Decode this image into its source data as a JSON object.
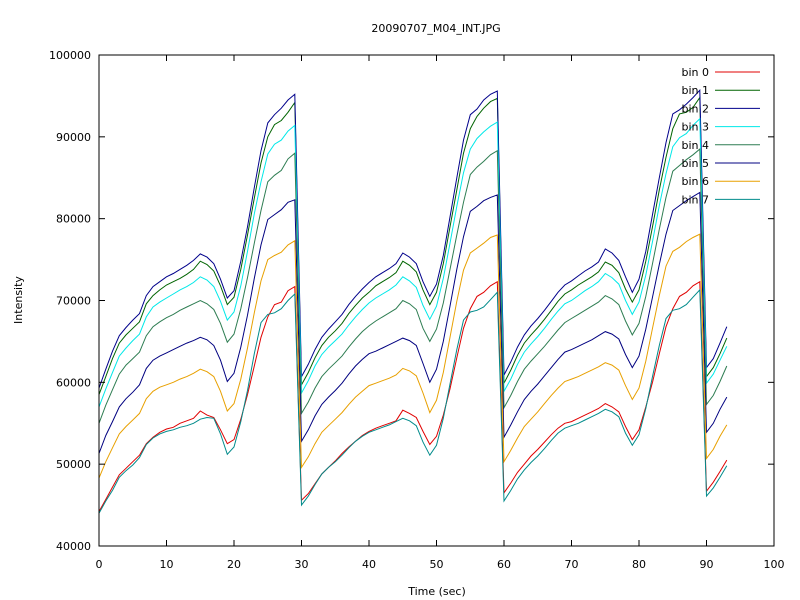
{
  "chart_data": {
    "type": "line",
    "title": "20090707_M04_INT.JPG",
    "xlabel": "Time (sec)",
    "ylabel": "Intensity",
    "xlim": [
      0,
      100
    ],
    "ylim": [
      40000,
      100000
    ],
    "x_ticks": [
      "0",
      "10",
      "20",
      "30",
      "40",
      "50",
      "60",
      "70",
      "80",
      "90",
      "100"
    ],
    "y_ticks": [
      "40000",
      "50000",
      "60000",
      "70000",
      "80000",
      "90000",
      "100000"
    ],
    "grid": false,
    "legend_position": "top-right",
    "x": [
      0,
      1,
      2,
      3,
      4,
      5,
      6,
      7,
      8,
      9,
      10,
      11,
      12,
      13,
      14,
      15,
      16,
      17,
      18,
      19,
      20,
      21,
      22,
      23,
      24,
      25,
      26,
      27,
      28,
      29,
      30,
      31,
      32,
      33,
      34,
      35,
      36,
      37,
      38,
      39,
      40,
      41,
      42,
      43,
      44,
      45,
      46,
      47,
      48,
      49,
      50,
      51,
      52,
      53,
      54,
      55,
      56,
      57,
      58,
      59,
      60,
      61,
      62,
      63,
      64,
      65,
      66,
      67,
      68,
      69,
      70,
      71,
      72,
      73,
      74,
      75,
      76,
      77,
      78,
      79,
      80,
      81,
      82,
      83,
      84,
      85,
      86,
      87,
      88,
      89,
      90,
      91,
      92,
      93
    ],
    "series": [
      {
        "name": "bin 0",
        "color": "#e00000",
        "values": [
          44200,
          45700,
          47200,
          48700,
          49500,
          50300,
          51100,
          52500,
          53300,
          53900,
          54300,
          54500,
          55000,
          55300,
          55600,
          56500,
          56000,
          55700,
          54200,
          52500,
          53000,
          55500,
          58500,
          62000,
          65500,
          68000,
          69500,
          69800,
          71200,
          71700,
          45600,
          46400,
          47600,
          48800,
          49600,
          50400,
          51300,
          52100,
          52800,
          53500,
          54000,
          54400,
          54700,
          55000,
          55300,
          56600,
          56200,
          55700,
          54000,
          52400,
          53400,
          56000,
          59200,
          63000,
          66600,
          69000,
          70500,
          71000,
          71800,
          72300,
          46500,
          47700,
          49000,
          50000,
          51000,
          51800,
          52700,
          53600,
          54400,
          55000,
          55200,
          55600,
          56000,
          56400,
          56800,
          57400,
          57000,
          56400,
          54600,
          53000,
          54200,
          57000,
          60000,
          63500,
          66800,
          69000,
          70500,
          71000,
          71800,
          72300,
          46700,
          47800,
          49100,
          50500
        ]
      },
      {
        "name": "bin 1",
        "color": "#006400",
        "values": [
          58500,
          60700,
          62900,
          64800,
          65800,
          66600,
          67400,
          69600,
          70600,
          71300,
          71900,
          72300,
          72700,
          73200,
          73800,
          74800,
          74400,
          73600,
          71800,
          69500,
          70400,
          73800,
          78000,
          82500,
          86800,
          90000,
          91500,
          92000,
          93000,
          94200,
          59700,
          61200,
          63000,
          64500,
          65500,
          66300,
          67200,
          68400,
          69400,
          70300,
          71000,
          71800,
          72300,
          72800,
          73400,
          74800,
          74300,
          73500,
          71300,
          69500,
          71000,
          74500,
          79000,
          83500,
          88000,
          91000,
          92500,
          93500,
          94300,
          94700,
          59900,
          61500,
          63300,
          64800,
          65800,
          66700,
          67700,
          68800,
          69900,
          70800,
          71300,
          71900,
          72400,
          72900,
          73500,
          74700,
          74300,
          73400,
          71400,
          69800,
          71300,
          74800,
          79000,
          83500,
          87500,
          91000,
          92800,
          93000,
          93600,
          94800,
          60700,
          61800,
          63500,
          65400
        ]
      },
      {
        "name": "bin 2",
        "color": "#00008b",
        "values": [
          59300,
          61600,
          63800,
          65700,
          66700,
          67600,
          68400,
          70600,
          71700,
          72300,
          72900,
          73300,
          73800,
          74300,
          74900,
          75700,
          75300,
          74500,
          72600,
          70300,
          71200,
          74800,
          79000,
          83800,
          88300,
          91700,
          92700,
          93500,
          94500,
          95200,
          60700,
          62200,
          64000,
          65500,
          66500,
          67400,
          68300,
          69500,
          70500,
          71400,
          72200,
          72900,
          73400,
          73900,
          74500,
          75800,
          75300,
          74500,
          72300,
          70500,
          72000,
          75500,
          80200,
          85000,
          89600,
          92700,
          93400,
          94500,
          95200,
          95600,
          60900,
          62500,
          64300,
          65800,
          66900,
          67800,
          68800,
          69900,
          71000,
          71900,
          72400,
          73000,
          73600,
          74100,
          74700,
          76300,
          75800,
          74900,
          72900,
          71000,
          72600,
          76000,
          80500,
          85000,
          89300,
          92800,
          93300,
          94000,
          94800,
          95700,
          61800,
          62900,
          64800,
          66800
        ]
      },
      {
        "name": "bin 3",
        "color": "#00e8e8",
        "values": [
          57000,
          59200,
          61200,
          63200,
          64200,
          65100,
          65900,
          68000,
          69200,
          69800,
          70300,
          70800,
          71300,
          71700,
          72200,
          72900,
          72500,
          71700,
          69900,
          67600,
          68600,
          71800,
          76000,
          80600,
          84500,
          87900,
          89100,
          89600,
          90700,
          91400,
          58700,
          60200,
          62000,
          63400,
          64300,
          65100,
          65900,
          67000,
          68000,
          68900,
          69700,
          70300,
          70800,
          71300,
          71900,
          72900,
          72400,
          71600,
          69400,
          67700,
          69300,
          72700,
          77000,
          81500,
          85600,
          88500,
          89800,
          90600,
          91300,
          91800,
          58900,
          60400,
          62200,
          63700,
          64700,
          65600,
          66600,
          67700,
          68700,
          69600,
          70000,
          70600,
          71200,
          71700,
          72300,
          73300,
          72800,
          72000,
          70000,
          68300,
          69800,
          73100,
          77200,
          81600,
          85500,
          88800,
          89900,
          90400,
          91400,
          92200,
          59900,
          61000,
          62700,
          64400
        ]
      },
      {
        "name": "bin 4",
        "color": "#2e7d52",
        "values": [
          55000,
          57200,
          59100,
          61000,
          62100,
          62900,
          63700,
          65700,
          66800,
          67400,
          67900,
          68300,
          68800,
          69200,
          69600,
          70000,
          69600,
          68900,
          67200,
          64900,
          65900,
          69000,
          72800,
          77000,
          81000,
          84500,
          85300,
          85900,
          87300,
          88000,
          56200,
          57600,
          59300,
          60700,
          61600,
          62400,
          63200,
          64300,
          65300,
          66200,
          66900,
          67500,
          68000,
          68500,
          69000,
          70000,
          69600,
          68900,
          66600,
          65000,
          66500,
          69700,
          73800,
          78000,
          82000,
          85400,
          86300,
          87000,
          87800,
          88300,
          56900,
          58400,
          60100,
          61600,
          62600,
          63500,
          64400,
          65400,
          66400,
          67300,
          67800,
          68300,
          68800,
          69300,
          69800,
          70600,
          70200,
          69500,
          67500,
          65800,
          67200,
          70500,
          74500,
          78700,
          82600,
          85800,
          86500,
          87200,
          87800,
          88500,
          57300,
          58400,
          60100,
          62000
        ]
      },
      {
        "name": "bin 5",
        "color": "#000080",
        "values": [
          51300,
          53500,
          55200,
          57000,
          58000,
          58800,
          59700,
          61700,
          62700,
          63200,
          63600,
          64000,
          64400,
          64800,
          65100,
          65500,
          65200,
          64500,
          62700,
          60100,
          61100,
          64300,
          68200,
          72700,
          76800,
          79900,
          80500,
          81100,
          82000,
          82300,
          52800,
          54200,
          55900,
          57300,
          58200,
          59000,
          59900,
          61000,
          62000,
          62800,
          63500,
          63800,
          64200,
          64600,
          65000,
          65400,
          65100,
          64500,
          62300,
          60000,
          61600,
          65000,
          69300,
          73800,
          77800,
          80900,
          81500,
          82200,
          82600,
          82900,
          53300,
          54800,
          56400,
          57900,
          58900,
          59800,
          60800,
          61800,
          62800,
          63700,
          64000,
          64400,
          64800,
          65200,
          65700,
          66200,
          65900,
          65300,
          63400,
          61800,
          63200,
          66500,
          70400,
          74400,
          78100,
          81000,
          81600,
          82200,
          82700,
          83200,
          53900,
          55000,
          56700,
          58200
        ]
      },
      {
        "name": "bin 6",
        "color": "#e8a000",
        "values": [
          48300,
          50300,
          52000,
          53700,
          54600,
          55400,
          56200,
          58000,
          58900,
          59400,
          59700,
          60000,
          60400,
          60700,
          61100,
          61600,
          61300,
          60700,
          58900,
          56500,
          57400,
          60400,
          64200,
          68500,
          72400,
          75000,
          75500,
          75900,
          76800,
          77300,
          49600,
          50900,
          52500,
          53900,
          54700,
          55500,
          56300,
          57300,
          58200,
          58900,
          59600,
          59900,
          60200,
          60500,
          60900,
          61700,
          61400,
          60800,
          58700,
          56300,
          57800,
          61200,
          65500,
          69900,
          73700,
          75800,
          76400,
          77000,
          77700,
          78000,
          50300,
          51700,
          53200,
          54600,
          55500,
          56400,
          57400,
          58400,
          59300,
          60100,
          60400,
          60700,
          61100,
          61500,
          61900,
          62400,
          62100,
          61500,
          59600,
          57900,
          59300,
          62600,
          66600,
          70600,
          74200,
          76000,
          76500,
          77200,
          77700,
          78100,
          50700,
          51800,
          53400,
          54800
        ]
      },
      {
        "name": "bin 7",
        "color": "#008b8b",
        "values": [
          44000,
          45500,
          46800,
          48400,
          49200,
          49900,
          50800,
          52400,
          53200,
          53700,
          54000,
          54200,
          54500,
          54700,
          55000,
          55500,
          55700,
          55600,
          53700,
          51200,
          52100,
          55200,
          59000,
          63500,
          67300,
          68300,
          68500,
          69000,
          70000,
          70800,
          45000,
          46100,
          47500,
          48800,
          49600,
          50300,
          51100,
          52000,
          52800,
          53400,
          53900,
          54200,
          54500,
          54800,
          55200,
          55600,
          55300,
          54700,
          52700,
          51100,
          52300,
          55600,
          59800,
          64000,
          67600,
          68600,
          68800,
          69200,
          70100,
          71000,
          45500,
          46800,
          48200,
          49300,
          50200,
          51000,
          51900,
          52900,
          53800,
          54400,
          54700,
          55000,
          55400,
          55800,
          56200,
          56700,
          56400,
          55800,
          53800,
          52300,
          53600,
          56800,
          60700,
          64500,
          67800,
          68800,
          69000,
          69500,
          70400,
          71300,
          46100,
          47100,
          48400,
          49800
        ]
      }
    ]
  }
}
